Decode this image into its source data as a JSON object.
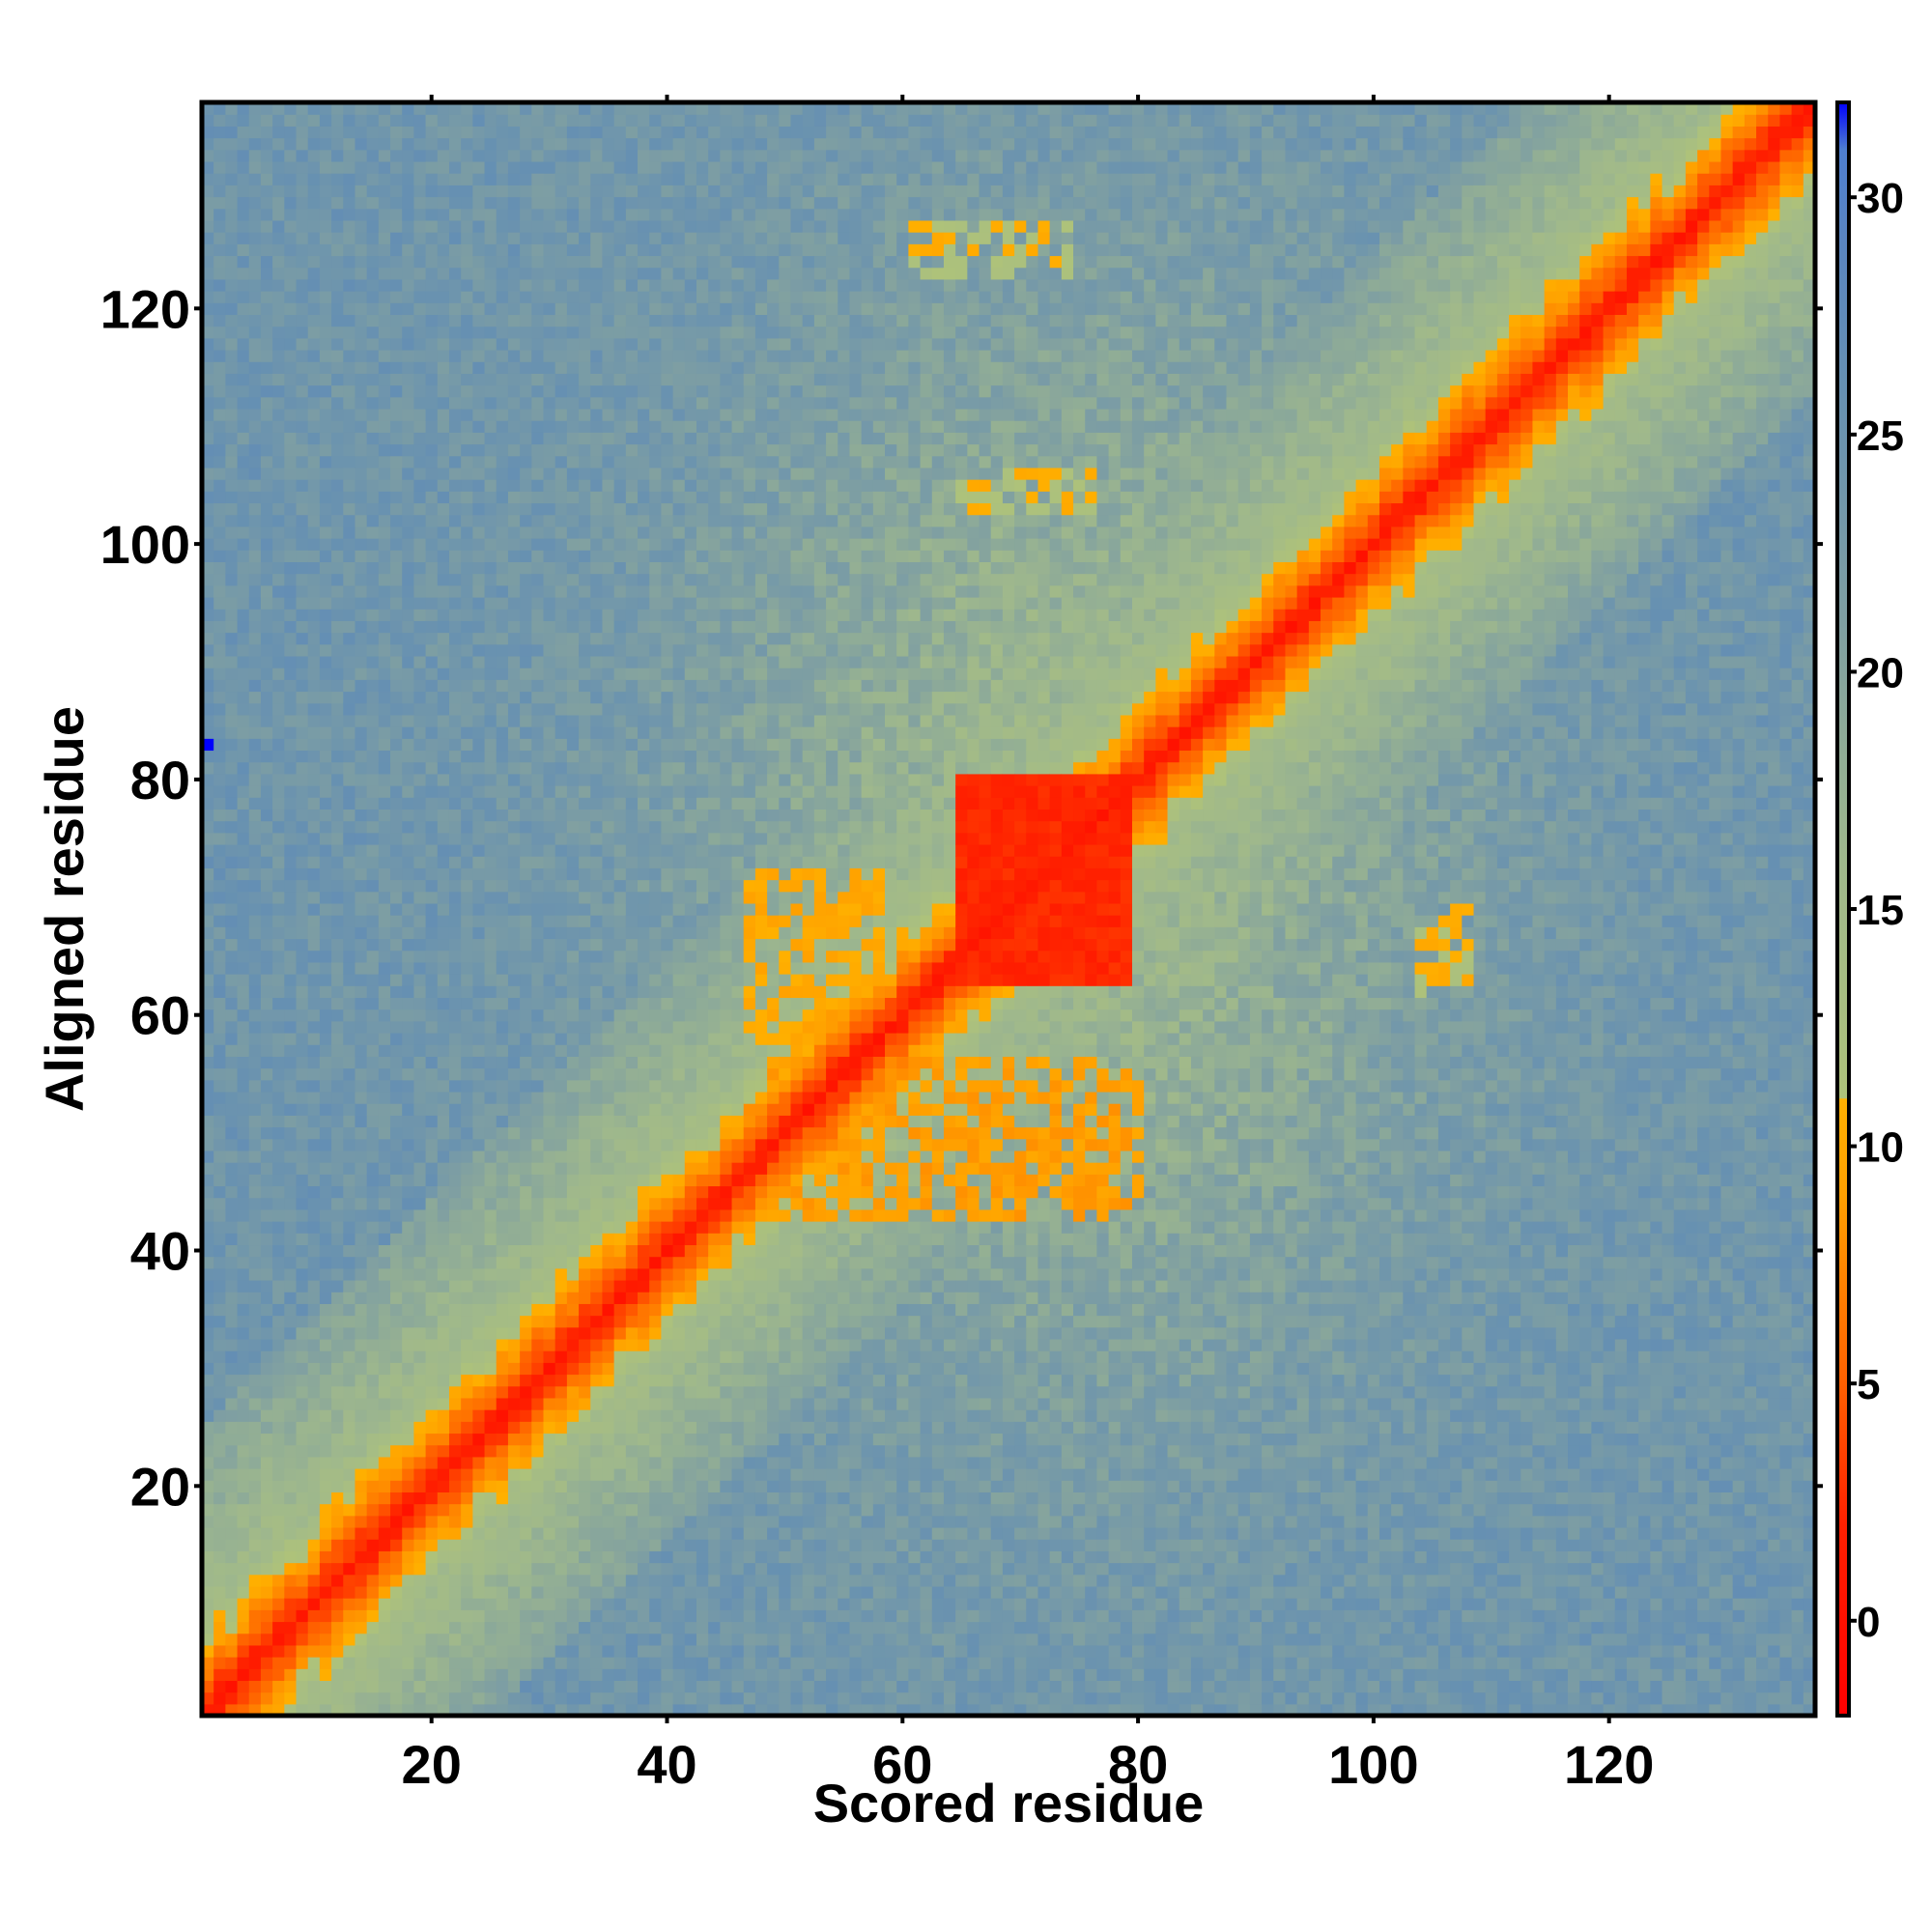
{
  "chart_data": {
    "type": "heatmap",
    "title": "",
    "xlabel": "Scored residue",
    "ylabel": "Aligned residue",
    "x_range": [
      1,
      137
    ],
    "y_range": [
      1,
      137
    ],
    "x_ticks": [
      20,
      40,
      60,
      80,
      100,
      120
    ],
    "y_ticks": [
      20,
      40,
      60,
      80,
      100,
      120
    ],
    "value_range": [
      -2,
      32
    ],
    "colorbar_ticks": [
      0,
      5,
      10,
      15,
      20,
      25,
      30
    ],
    "colorscale": [
      {
        "value": -2,
        "color": "#ff0000"
      },
      {
        "value": 2,
        "color": "#ff2000"
      },
      {
        "value": 5,
        "color": "#ff6000"
      },
      {
        "value": 9,
        "color": "#ffa000"
      },
      {
        "value": 11,
        "color": "#ffb000"
      },
      {
        "value": 11.01,
        "color": "#aec27a"
      },
      {
        "value": 16,
        "color": "#9fb88c"
      },
      {
        "value": 21,
        "color": "#7f9fa2"
      },
      {
        "value": 26,
        "color": "#6690b2"
      },
      {
        "value": 29,
        "color": "#5a85c0"
      },
      {
        "value": 31,
        "color": "#4f7fd0"
      },
      {
        "value": 32,
        "color": "#0000ff"
      }
    ],
    "features": {
      "diagonal": "low expected position error (approx. 0) along the diagonal x = y",
      "block": {
        "x": [
          65,
          79
        ],
        "y": [
          63,
          80
        ],
        "value": 1.5
      },
      "offdiag_orange_patches": [
        {
          "x": [
            49,
            80
          ],
          "y": [
            43,
            56
          ],
          "value": 8
        },
        {
          "x": [
            47,
            58
          ],
          "y": [
            58,
            72
          ],
          "value": 9
        },
        {
          "x": [
            61,
            74
          ],
          "y": [
            123,
            127
          ],
          "value": 10
        },
        {
          "x": [
            65,
            76
          ],
          "y": [
            103,
            106
          ],
          "value": 10
        },
        {
          "x": [
            104,
            108
          ],
          "y": [
            62,
            69
          ],
          "value": 10
        }
      ],
      "background_value_typical": 24
    }
  }
}
